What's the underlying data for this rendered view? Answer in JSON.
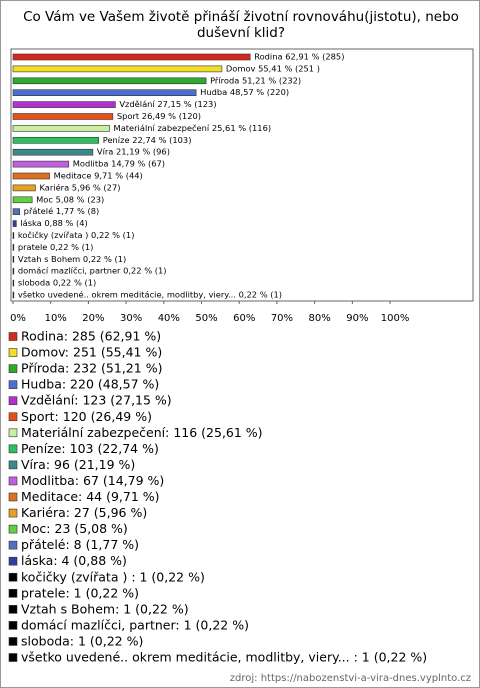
{
  "chart_data": {
    "type": "bar",
    "orientation": "horizontal",
    "title": "Co Vám ve Vašem životě přináší životní rovnováhu(jistotu), nebo duševní klid?",
    "source": "zdroj: https://nabozenstvi-a-vira-dnes.vyplnto.cz",
    "categories": [
      "Rodina: 285 (62,91 %)",
      "Domov: 251 (55,41 %)",
      "Příroda: 232 (51,21 %)",
      "Hudba: 220 (48,57 %)",
      "Vzdělání: 123 (27,15 %)",
      "Sport: 120 (26,49 %)",
      "Materiální zabezpečení: 116 (25,61 %)",
      "Peníze: 103 (22,74 %)",
      "Víra: 96 (21,19 %)",
      "Modlitba: 67 (14,79 %)",
      "Meditace: 44 (9,71 %)",
      "Kariéra: 27 (5,96 %)",
      "Moc: 23 (5,08 %)",
      "přátelé: 8 (1,77 %)",
      "láska: 4 (0,88 %)",
      "kočičky (zvířata ) : 1 (0,22 %)",
      "pratele: 1 (0,22 %)",
      "Vztah s Bohem: 1 (0,22 %)",
      "domácí mazlíčci, partner: 1 (0,22 %)",
      "sloboda: 1 (0,22 %)",
      "všetko uvedené.. okrem meditácie, modlitby, viery... : 1 (0,22 %)"
    ],
    "values": [
      62.91,
      55.41,
      51.21,
      48.57,
      27.15,
      26.49,
      25.61,
      22.74,
      21.19,
      14.79,
      9.71,
      5.96,
      5.08,
      1.77,
      0.88,
      0.22,
      0.22,
      0.22,
      0.22,
      0.22,
      0.22
    ],
    "value_labels": [
      "Rodina 62,91 % (285)",
      "Domov 55,41 % (251 )",
      "Příroda 51,21 % (232)",
      "Hudba 48,57 % (220)",
      "Vzdělání 27,15 % (123)",
      "Sport 26,49 % (120)",
      "Materiální zabezpečení 25,61 % (116)",
      "Peníze 22,74 % (103)",
      "Víra 21,19 % (96)",
      "Modlitba 14,79 % (67)",
      "Meditace 9,71 % (44)",
      "Kariéra 5,96 % (27)",
      "Moc 5,08 % (23)",
      "přátelé 1,77 % (8)",
      "láska 0,88 % (4)",
      "kočičky (zvířata )  0,22 % (1)",
      "pratele 0,22 % (1)",
      "Vztah s Bohem 0,22 % (1)",
      "domácí mazlíčci, partner 0,22 % (1)",
      "sloboda 0,22 % (1)",
      "všetko uvedené.. okrem meditácie, modlitby, viery...  0,22 % (1)"
    ],
    "colors": [
      "#d42a1e",
      "#f2dc2a",
      "#2ea82e",
      "#4a6fd1",
      "#b030d0",
      "#e8501a",
      "#c8f0a0",
      "#2ec060",
      "#3a8a8a",
      "#c060e0",
      "#e07020",
      "#e8a020",
      "#60d040",
      "#5070c0",
      "#3040a0",
      "#000000",
      "#000000",
      "#000000",
      "#000000",
      "#000000",
      "#000000"
    ],
    "xlim": [
      0,
      122
    ],
    "xticks": [
      {
        "value": 0,
        "label": "0%"
      },
      {
        "value": 10,
        "label": "10%"
      },
      {
        "value": 20,
        "label": "20%"
      },
      {
        "value": 30,
        "label": "30%"
      },
      {
        "value": 40,
        "label": "40%"
      },
      {
        "value": 50,
        "label": "50%"
      },
      {
        "value": 60,
        "label": "60%"
      },
      {
        "value": 70,
        "label": "70%"
      },
      {
        "value": 80,
        "label": "80%"
      },
      {
        "value": 90,
        "label": "90%"
      },
      {
        "value": 100,
        "label": "100%"
      }
    ],
    "grid": false
  }
}
